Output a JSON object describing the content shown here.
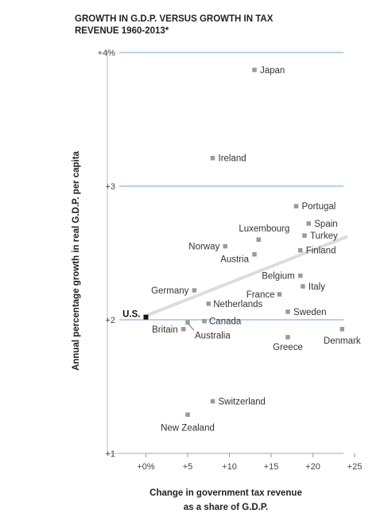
{
  "chart_data": {
    "type": "scatter",
    "title": "GROWTH IN G.D.P. VERSUS GROWTH IN TAX REVENUE 1960-2013*",
    "xlabel": [
      "Change in government tax revenue",
      "as a share of G.D.P."
    ],
    "ylabel": "Annual percentage growth in real G.D.P. per capita",
    "xlim": [
      -3,
      27
    ],
    "ylim": [
      1,
      4
    ],
    "x_ticks": [
      {
        "value": 0,
        "label": "+0%"
      },
      {
        "value": 5,
        "label": "+5"
      },
      {
        "value": 10,
        "label": "+10"
      },
      {
        "value": 15,
        "label": "+15"
      },
      {
        "value": 20,
        "label": "+20"
      },
      {
        "value": 25,
        "label": "+25"
      }
    ],
    "y_ticks": [
      {
        "value": 4,
        "label": "+4%"
      },
      {
        "value": 3,
        "label": "+3"
      },
      {
        "value": 2,
        "label": "+2"
      },
      {
        "value": 1,
        "label": "+1"
      }
    ],
    "grid": "horizontal",
    "colors": {
      "point": "#9a9a9a",
      "us_point": "#111111",
      "grid": "#8fb8d8",
      "trend": "#dcdcdc"
    },
    "trend_line": {
      "x": [
        0,
        24
      ],
      "y": [
        2.03,
        2.62
      ]
    },
    "points": [
      {
        "name": "Japan",
        "x": 13,
        "y": 3.87
      },
      {
        "name": "Ireland",
        "x": 8,
        "y": 3.21
      },
      {
        "name": "Portugal",
        "x": 18,
        "y": 2.85
      },
      {
        "name": "Spain",
        "x": 19.5,
        "y": 2.72
      },
      {
        "name": "Turkey",
        "x": 19,
        "y": 2.63
      },
      {
        "name": "Luxembourg",
        "x": 13.5,
        "y": 2.6
      },
      {
        "name": "Norway",
        "x": 9.5,
        "y": 2.55
      },
      {
        "name": "Finland",
        "x": 18.5,
        "y": 2.52
      },
      {
        "name": "Austria",
        "x": 13,
        "y": 2.49
      },
      {
        "name": "Belgium",
        "x": 18.5,
        "y": 2.33
      },
      {
        "name": "Italy",
        "x": 18.8,
        "y": 2.25
      },
      {
        "name": "Germany",
        "x": 5.8,
        "y": 2.22
      },
      {
        "name": "France",
        "x": 16,
        "y": 2.19
      },
      {
        "name": "Netherlands",
        "x": 7.5,
        "y": 2.12
      },
      {
        "name": "Sweden",
        "x": 17,
        "y": 2.06
      },
      {
        "name": "U.S.",
        "x": 0,
        "y": 2.02
      },
      {
        "name": "Canada",
        "x": 7,
        "y": 1.99
      },
      {
        "name": "Britain",
        "x": 4.5,
        "y": 1.93
      },
      {
        "name": "Australia",
        "x": 5,
        "y": 1.98
      },
      {
        "name": "Denmark",
        "x": 23.5,
        "y": 1.93
      },
      {
        "name": "Greece",
        "x": 17,
        "y": 1.87
      },
      {
        "name": "Switzerland",
        "x": 8,
        "y": 1.39
      },
      {
        "name": "New Zealand",
        "x": 5,
        "y": 1.29
      }
    ]
  }
}
